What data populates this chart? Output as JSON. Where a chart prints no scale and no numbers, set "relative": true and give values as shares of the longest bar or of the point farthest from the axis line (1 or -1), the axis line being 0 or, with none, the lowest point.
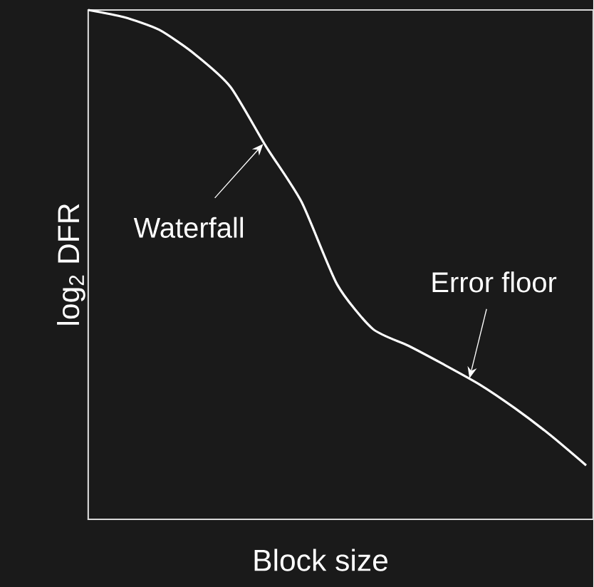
{
  "chart_data": {
    "type": "line",
    "relative": true,
    "xlabel": "Block size",
    "ylabel": "log$_{2}$ DFR",
    "categories": [
      null,
      null,
      null,
      null,
      null,
      null,
      null,
      null,
      null,
      null,
      null,
      null,
      null,
      null,
      null
    ],
    "series": [
      {
        "color": "#ffffff",
        "values": [
          1.0,
          0.986,
          0.961,
          0.913,
          0.849,
          0.732,
          0.623,
          0.461,
          0.374,
          0.341,
          0.304,
          0.265,
          0.218,
          0.165,
          0.106
        ]
      }
    ],
    "annotations": [
      "Waterfall",
      "Error floor"
    ]
  }
}
